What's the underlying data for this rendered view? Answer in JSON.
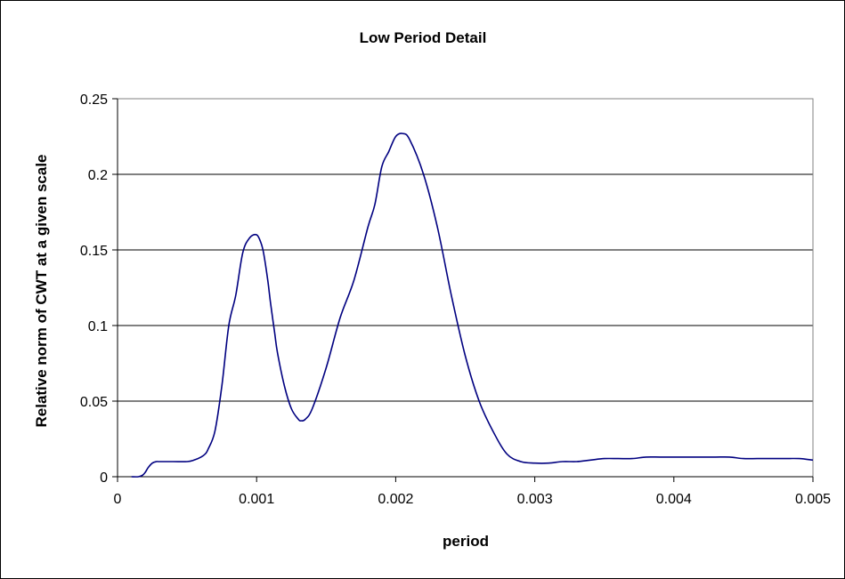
{
  "chart_data": {
    "type": "line",
    "title": "Low Period Detail",
    "xlabel": "period",
    "ylabel": "Relative norm of CWT at a given scale",
    "xlim": [
      0,
      0.005
    ],
    "ylim": [
      0,
      0.25
    ],
    "x_ticks": [
      "0",
      "0.001",
      "0.002",
      "0.003",
      "0.004",
      "0.005"
    ],
    "y_ticks": [
      "0",
      "0.05",
      "0.1",
      "0.15",
      "0.2",
      "0.25"
    ],
    "grid": "horizontal",
    "legend": "none",
    "line_color": "#000080",
    "series": [
      {
        "x": [
          0.0001,
          0.00015,
          0.00018,
          0.0002,
          0.00022,
          0.00025,
          0.00028,
          0.0003,
          0.0004,
          0.0005,
          0.00055,
          0.0006,
          0.00063,
          0.00065,
          0.0007,
          0.00075,
          0.0008,
          0.00085,
          0.0009,
          0.00095,
          0.001,
          0.00103,
          0.00105,
          0.00108,
          0.0011,
          0.00113,
          0.00115,
          0.0012,
          0.00125,
          0.0013,
          0.00132,
          0.00135,
          0.0014,
          0.0015,
          0.0016,
          0.0017,
          0.0018,
          0.00185,
          0.0019,
          0.00195,
          0.002,
          0.00205,
          0.0021,
          0.0022,
          0.0023,
          0.0024,
          0.0025,
          0.0026,
          0.0027,
          0.0028,
          0.0029,
          0.003,
          0.0031,
          0.0032,
          0.0033,
          0.0034,
          0.0035,
          0.0036,
          0.0037,
          0.0038,
          0.0039,
          0.004,
          0.0041,
          0.0042,
          0.0043,
          0.0044,
          0.0045,
          0.0046,
          0.0047,
          0.0048,
          0.0049,
          0.005
        ],
        "y": [
          0,
          0,
          0.001,
          0.003,
          0.006,
          0.009,
          0.01,
          0.01,
          0.01,
          0.01,
          0.011,
          0.013,
          0.015,
          0.018,
          0.03,
          0.06,
          0.1,
          0.12,
          0.148,
          0.158,
          0.16,
          0.155,
          0.148,
          0.13,
          0.115,
          0.095,
          0.082,
          0.06,
          0.045,
          0.038,
          0.037,
          0.038,
          0.045,
          0.072,
          0.105,
          0.13,
          0.165,
          0.18,
          0.205,
          0.215,
          0.225,
          0.227,
          0.223,
          0.2,
          0.165,
          0.12,
          0.08,
          0.05,
          0.03,
          0.015,
          0.01,
          0.009,
          0.009,
          0.01,
          0.01,
          0.011,
          0.012,
          0.012,
          0.012,
          0.013,
          0.013,
          0.013,
          0.013,
          0.013,
          0.013,
          0.013,
          0.012,
          0.012,
          0.012,
          0.012,
          0.012,
          0.011
        ]
      }
    ]
  }
}
